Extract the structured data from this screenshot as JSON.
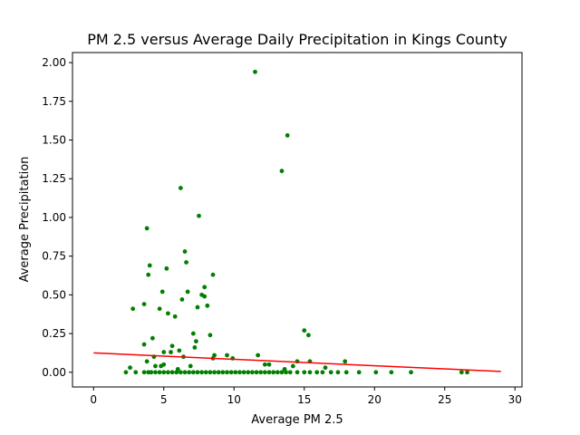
{
  "chart_data": {
    "type": "scatter",
    "title": "PM 2.5 versus Average Daily Precipitation in Kings County",
    "xlabel": "Average PM 2.5",
    "ylabel": "Average Precipitation",
    "xlim": [
      -1.5,
      30.5
    ],
    "ylim": [
      -0.095,
      2.065
    ],
    "xticks": [
      0,
      5,
      10,
      15,
      20,
      25,
      30
    ],
    "xtick_labels": [
      "0",
      "5",
      "10",
      "15",
      "20",
      "25",
      "30"
    ],
    "yticks": [
      0,
      0.25,
      0.5,
      0.75,
      1.0,
      1.25,
      1.5,
      1.75,
      2.0
    ],
    "ytick_labels": [
      "0.00",
      "0.25",
      "0.50",
      "0.75",
      "1.00",
      "1.25",
      "1.50",
      "1.75",
      "2.00"
    ],
    "grid": false,
    "point_color": "#008000",
    "line_color": "#ff0000",
    "series": [
      {
        "type": "scatter",
        "points": [
          [
            11.5,
            1.94
          ],
          [
            13.8,
            1.53
          ],
          [
            13.4,
            1.3
          ],
          [
            6.2,
            1.19
          ],
          [
            7.5,
            1.01
          ],
          [
            3.8,
            0.93
          ],
          [
            6.5,
            0.78
          ],
          [
            6.6,
            0.71
          ],
          [
            4.0,
            0.69
          ],
          [
            5.2,
            0.67
          ],
          [
            3.9,
            0.63
          ],
          [
            8.5,
            0.63
          ],
          [
            7.9,
            0.55
          ],
          [
            4.9,
            0.52
          ],
          [
            6.7,
            0.52
          ],
          [
            7.7,
            0.5
          ],
          [
            7.9,
            0.49
          ],
          [
            6.3,
            0.47
          ],
          [
            3.6,
            0.44
          ],
          [
            8.1,
            0.43
          ],
          [
            7.4,
            0.42
          ],
          [
            2.8,
            0.41
          ],
          [
            4.7,
            0.41
          ],
          [
            5.3,
            0.38
          ],
          [
            5.8,
            0.36
          ],
          [
            15.0,
            0.27
          ],
          [
            7.1,
            0.25
          ],
          [
            15.3,
            0.24
          ],
          [
            8.3,
            0.24
          ],
          [
            4.2,
            0.22
          ],
          [
            7.3,
            0.2
          ],
          [
            3.6,
            0.18
          ],
          [
            5.6,
            0.17
          ],
          [
            7.2,
            0.16
          ],
          [
            6.1,
            0.14
          ],
          [
            5.0,
            0.13
          ],
          [
            5.5,
            0.13
          ],
          [
            8.6,
            0.11
          ],
          [
            9.5,
            0.11
          ],
          [
            11.7,
            0.11
          ],
          [
            4.3,
            0.1
          ],
          [
            6.4,
            0.1
          ],
          [
            8.5,
            0.09
          ],
          [
            9.9,
            0.09
          ],
          [
            3.8,
            0.07
          ],
          [
            14.5,
            0.07
          ],
          [
            15.4,
            0.07
          ],
          [
            17.9,
            0.07
          ],
          [
            12.2,
            0.05
          ],
          [
            12.5,
            0.05
          ],
          [
            14.2,
            0.04
          ],
          [
            4.4,
            0.04
          ],
          [
            4.8,
            0.04
          ],
          [
            5.0,
            0.05
          ],
          [
            6.9,
            0.04
          ],
          [
            2.6,
            0.03
          ],
          [
            16.5,
            0.03
          ],
          [
            13.6,
            0.02
          ],
          [
            6.0,
            0.02
          ],
          [
            2.3,
            0.0
          ],
          [
            3.0,
            0.0
          ],
          [
            3.6,
            0.0
          ],
          [
            3.9,
            0.0
          ],
          [
            4.1,
            0.0
          ],
          [
            4.4,
            0.0
          ],
          [
            4.7,
            0.0
          ],
          [
            5.0,
            0.0
          ],
          [
            5.3,
            0.0
          ],
          [
            5.6,
            0.0
          ],
          [
            5.9,
            0.0
          ],
          [
            6.2,
            0.0
          ],
          [
            6.5,
            0.0
          ],
          [
            6.8,
            0.0
          ],
          [
            7.1,
            0.0
          ],
          [
            7.4,
            0.0
          ],
          [
            7.7,
            0.0
          ],
          [
            8.0,
            0.0
          ],
          [
            8.3,
            0.0
          ],
          [
            8.6,
            0.0
          ],
          [
            8.9,
            0.0
          ],
          [
            9.2,
            0.0
          ],
          [
            9.5,
            0.0
          ],
          [
            9.8,
            0.0
          ],
          [
            10.1,
            0.0
          ],
          [
            10.4,
            0.0
          ],
          [
            10.7,
            0.0
          ],
          [
            11.0,
            0.0
          ],
          [
            11.3,
            0.0
          ],
          [
            11.6,
            0.0
          ],
          [
            11.9,
            0.0
          ],
          [
            12.2,
            0.0
          ],
          [
            12.5,
            0.0
          ],
          [
            12.8,
            0.0
          ],
          [
            13.1,
            0.0
          ],
          [
            13.4,
            0.0
          ],
          [
            13.7,
            0.0
          ],
          [
            14.0,
            0.0
          ],
          [
            14.5,
            0.0
          ],
          [
            15.0,
            0.0
          ],
          [
            15.4,
            0.0
          ],
          [
            15.9,
            0.0
          ],
          [
            16.3,
            0.0
          ],
          [
            16.9,
            0.0
          ],
          [
            17.4,
            0.0
          ],
          [
            18.0,
            0.0
          ],
          [
            18.9,
            0.0
          ],
          [
            20.1,
            0.0
          ],
          [
            21.2,
            0.0
          ],
          [
            22.6,
            0.0
          ],
          [
            26.2,
            0.0
          ],
          [
            26.6,
            0.0
          ]
        ]
      },
      {
        "type": "line",
        "points": [
          [
            0,
            0.125
          ],
          [
            29,
            0.005
          ]
        ]
      }
    ]
  }
}
